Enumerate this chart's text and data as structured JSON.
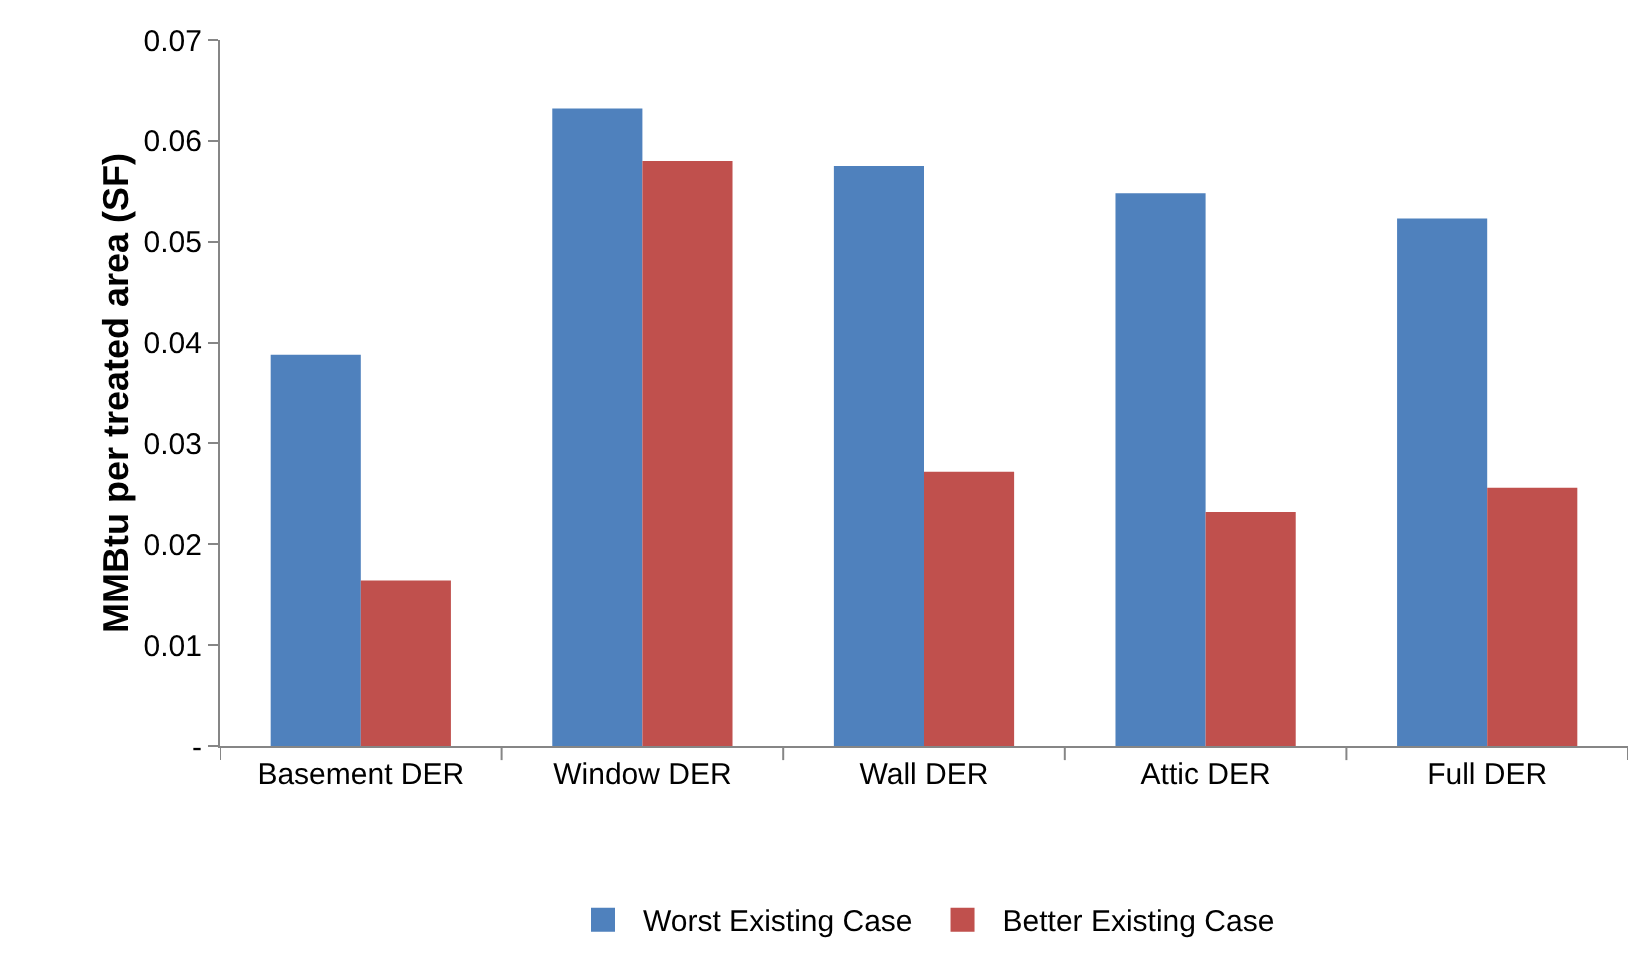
{
  "chart_data": {
    "type": "bar",
    "ylabel": "MMBtu per treated area (SF)",
    "categories": [
      "Basement DER",
      "Window DER",
      "Wall DER",
      "Attic DER",
      "Full DER"
    ],
    "series": [
      {
        "name": "Worst Existing Case",
        "color": "#4f81bd",
        "values": [
          0.0388,
          0.0632,
          0.0575,
          0.0548,
          0.0523
        ]
      },
      {
        "name": "Better Existing Case",
        "color": "#c0504d",
        "values": [
          0.0164,
          0.058,
          0.0272,
          0.0232,
          0.0256
        ]
      }
    ],
    "ylim": [
      0,
      0.07
    ],
    "yticks": [
      {
        "value": 0,
        "label": "-"
      },
      0.01,
      0.02,
      0.03,
      0.04,
      0.05,
      0.06,
      0.07
    ],
    "grid": false,
    "legend": "bottom"
  }
}
